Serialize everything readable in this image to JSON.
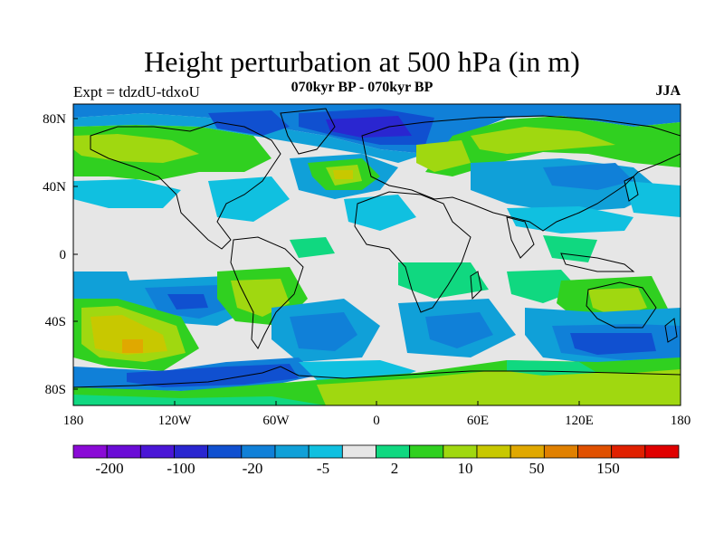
{
  "title": "Height perturbation at 500 hPa (in m)",
  "subtitle": "070kyr BP - 070kyr BP",
  "experiment": "Expt = tdzdU-tdxoU",
  "season": "JJA",
  "map": {
    "projection": "cylindrical equidistant",
    "lon_labels": [
      "180",
      "120W",
      "60W",
      "0",
      "60E",
      "120E",
      "180"
    ],
    "lat_labels": [
      "80N",
      "40N",
      "0",
      "40S",
      "80S"
    ],
    "background_color": "#e6e6e6"
  },
  "colorbar": {
    "colors": [
      "#8a0ad6",
      "#6a0cd6",
      "#4a16d6",
      "#2a26d0",
      "#1050d0",
      "#1080d8",
      "#10a0d8",
      "#10c0e0",
      "#e6e6e6",
      "#10d880",
      "#30d020",
      "#a0d810",
      "#c8c800",
      "#e0a800",
      "#e08000",
      "#e05000",
      "#e02000",
      "#e00000"
    ],
    "labels": [
      "-200",
      "-100",
      "-20",
      "-5",
      "2",
      "10",
      "50",
      "150"
    ]
  },
  "chart_data": {
    "type": "heatmap",
    "title": "Height perturbation at 500 hPa (in m)",
    "subtitle": "070kyr BP - 070kyr BP",
    "xlabel": "",
    "ylabel": "",
    "x_range": [
      -180,
      180
    ],
    "y_range": [
      -90,
      90
    ],
    "contour_levels": [
      -200,
      -100,
      -20,
      -5,
      2,
      10,
      50,
      150
    ],
    "notable_features": [
      {
        "label": "50",
        "lon": -140,
        "lat": -50
      },
      {
        "label": "-100",
        "lon": -40,
        "lat": 75
      },
      {
        "label": "-20",
        "lon": 140,
        "lat": -50
      }
    ]
  }
}
